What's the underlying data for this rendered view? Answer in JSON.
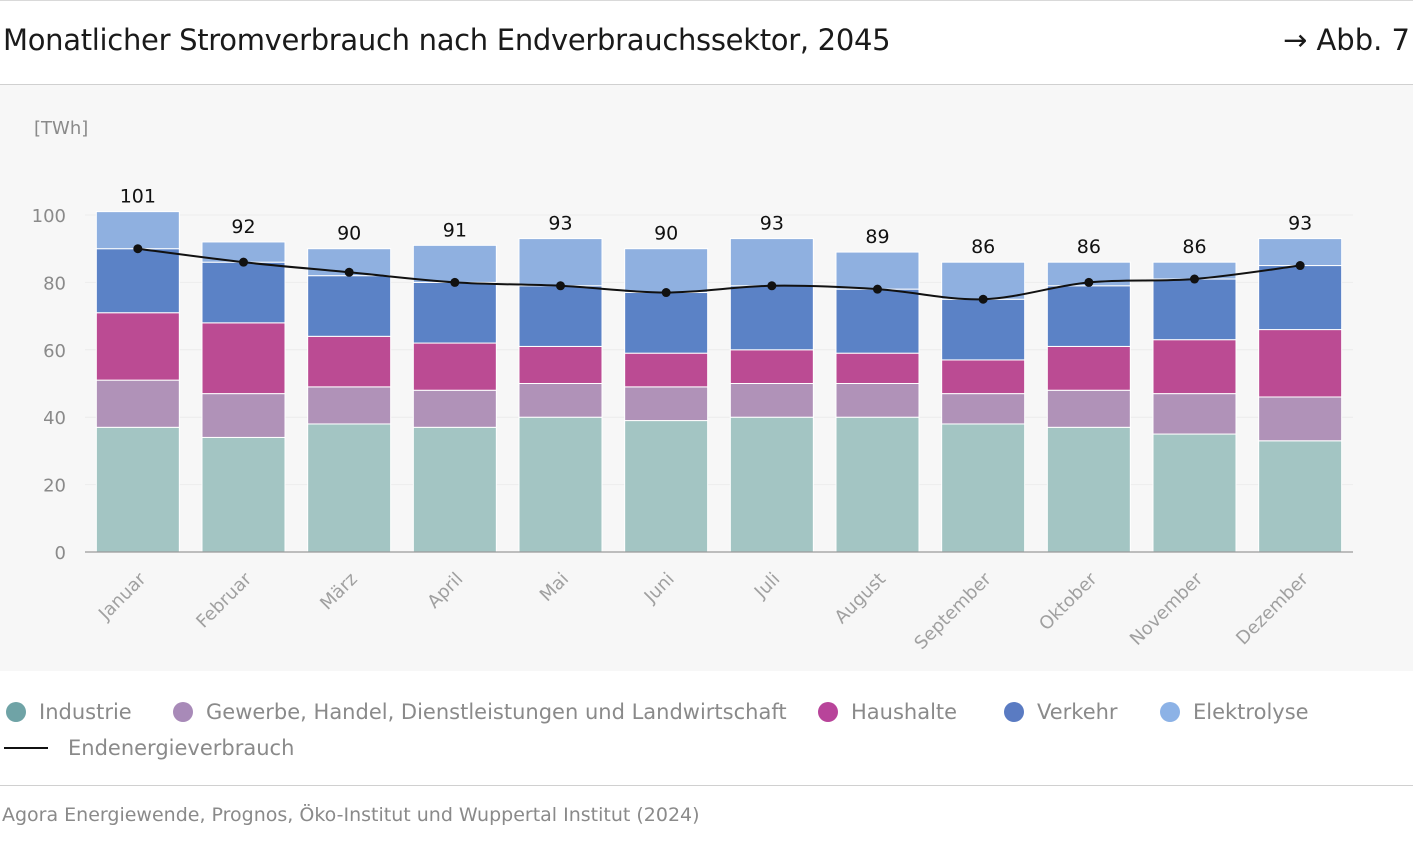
{
  "header": {
    "title": "Monatlicher Stromverbrauch nach Endverbrauchssektor, 2045",
    "figref": "→ Abb. 7"
  },
  "chart_data": {
    "type": "bar",
    "stacked": true,
    "unit_label": "[TWh]",
    "ylim": [
      0,
      100
    ],
    "yticks": [
      "0",
      "20",
      "40",
      "60",
      "80",
      "100"
    ],
    "categories": [
      "Januar",
      "Februar",
      "März",
      "April",
      "Mai",
      "Juni",
      "Juli",
      "August",
      "September",
      "Oktober",
      "November",
      "Dezember"
    ],
    "series": [
      {
        "name": "Industrie",
        "color": "#a3c5c3",
        "values": [
          37,
          34,
          38,
          37,
          40,
          39,
          40,
          40,
          38,
          37,
          35,
          33
        ]
      },
      {
        "name": "Gewerbe, Handel, Dienstleistungen und Landwirtschaft",
        "color": "#b092b8",
        "values": [
          14,
          13,
          11,
          11,
          10,
          10,
          10,
          10,
          9,
          11,
          12,
          13
        ]
      },
      {
        "name": "Haushalte",
        "color": "#bb4b93",
        "values": [
          20,
          21,
          15,
          14,
          11,
          10,
          10,
          9,
          10,
          13,
          16,
          20
        ]
      },
      {
        "name": "Verkehr",
        "color": "#5b82c6",
        "values": [
          19,
          18,
          18,
          18,
          18,
          18,
          19,
          19,
          18,
          18,
          18,
          19
        ]
      },
      {
        "name": "Elektrolyse",
        "color": "#8fb0e0",
        "values": [
          11,
          6,
          8,
          11,
          14,
          13,
          14,
          11,
          11,
          7,
          5,
          8
        ]
      }
    ],
    "totals": [
      101,
      92,
      90,
      91,
      93,
      90,
      93,
      89,
      86,
      86,
      86,
      93
    ],
    "total_labels": [
      "101",
      "92",
      "90",
      "91",
      "93",
      "90",
      "93",
      "89",
      "86",
      "86",
      "86",
      "93"
    ],
    "line": {
      "name": "Endenergieverbrauch",
      "color": "#111111",
      "values": [
        90,
        86,
        83,
        80,
        79,
        77,
        79,
        78,
        75,
        80,
        81,
        85
      ]
    }
  },
  "legend": {
    "items": [
      {
        "label": "Industrie",
        "color": "#6fa3a6"
      },
      {
        "label": "Gewerbe, Handel, Dienstleistungen und Landwirtschaft",
        "color": "#a88ab8"
      },
      {
        "label": "Haushalte",
        "color": "#b8449a"
      },
      {
        "label": "Verkehr",
        "color": "#5a7bc2"
      },
      {
        "label": "Elektrolyse",
        "color": "#8cb2e6"
      }
    ],
    "line_label": "Endenergieverbrauch"
  },
  "source": "Agora Energiewende, Prognos, Öko-Institut und Wuppertal Institut (2024)"
}
